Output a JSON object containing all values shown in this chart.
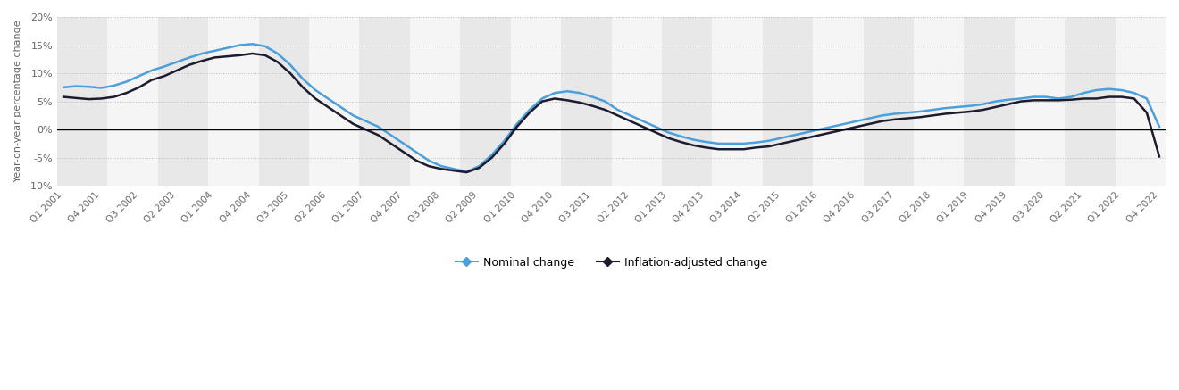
{
  "all_quarters": [
    "Q1 2001",
    "Q2 2001",
    "Q3 2001",
    "Q4 2001",
    "Q1 2002",
    "Q2 2002",
    "Q3 2002",
    "Q4 2002",
    "Q1 2003",
    "Q2 2003",
    "Q3 2003",
    "Q4 2003",
    "Q1 2004",
    "Q2 2004",
    "Q3 2004",
    "Q4 2004",
    "Q1 2005",
    "Q2 2005",
    "Q3 2005",
    "Q4 2005",
    "Q1 2006",
    "Q2 2006",
    "Q3 2006",
    "Q4 2006",
    "Q1 2007",
    "Q2 2007",
    "Q3 2007",
    "Q4 2007",
    "Q1 2008",
    "Q2 2008",
    "Q3 2008",
    "Q4 2008",
    "Q1 2009",
    "Q2 2009",
    "Q3 2009",
    "Q4 2009",
    "Q1 2010",
    "Q2 2010",
    "Q3 2010",
    "Q4 2010",
    "Q1 2011",
    "Q2 2011",
    "Q3 2011",
    "Q4 2011",
    "Q1 2012",
    "Q2 2012",
    "Q3 2012",
    "Q4 2012",
    "Q1 2013",
    "Q2 2013",
    "Q3 2013",
    "Q4 2013",
    "Q1 2014",
    "Q2 2014",
    "Q3 2014",
    "Q4 2014",
    "Q1 2015",
    "Q2 2015",
    "Q3 2015",
    "Q4 2015",
    "Q1 2016",
    "Q2 2016",
    "Q3 2016",
    "Q4 2016",
    "Q1 2017",
    "Q2 2017",
    "Q3 2017",
    "Q4 2017",
    "Q1 2018",
    "Q2 2018",
    "Q3 2018",
    "Q4 2018",
    "Q1 2019",
    "Q2 2019",
    "Q3 2019",
    "Q4 2019",
    "Q1 2020",
    "Q2 2020",
    "Q3 2020",
    "Q4 2020",
    "Q1 2021",
    "Q2 2021",
    "Q3 2021",
    "Q4 2021",
    "Q1 2022",
    "Q2 2022",
    "Q3 2022",
    "Q4 2022"
  ],
  "nominal": [
    7.5,
    7.7,
    7.6,
    7.4,
    7.8,
    8.5,
    9.5,
    10.5,
    11.2,
    12.0,
    12.8,
    13.5,
    14.0,
    14.5,
    15.0,
    15.2,
    14.8,
    13.5,
    11.5,
    9.0,
    7.0,
    5.5,
    4.0,
    2.5,
    1.5,
    0.5,
    -1.0,
    -2.5,
    -4.0,
    -5.5,
    -6.5,
    -7.0,
    -7.5,
    -6.5,
    -4.5,
    -2.0,
    1.0,
    3.5,
    5.5,
    6.5,
    6.8,
    6.5,
    5.8,
    5.0,
    3.5,
    2.5,
    1.5,
    0.5,
    -0.5,
    -1.2,
    -1.8,
    -2.2,
    -2.5,
    -2.5,
    -2.5,
    -2.3,
    -2.0,
    -1.5,
    -1.0,
    -0.5,
    0.0,
    0.5,
    1.0,
    1.5,
    2.0,
    2.5,
    2.8,
    3.0,
    3.2,
    3.5,
    3.8,
    4.0,
    4.2,
    4.5,
    5.0,
    5.3,
    5.5,
    5.8,
    5.8,
    5.5,
    5.8,
    6.5,
    7.0,
    7.2,
    7.0,
    6.5,
    5.5,
    0.5
  ],
  "inflation_adjusted": [
    5.8,
    5.6,
    5.4,
    5.5,
    5.8,
    6.5,
    7.5,
    8.8,
    9.5,
    10.5,
    11.5,
    12.2,
    12.8,
    13.0,
    13.2,
    13.5,
    13.2,
    12.0,
    10.0,
    7.5,
    5.5,
    4.0,
    2.5,
    1.0,
    0.0,
    -1.0,
    -2.5,
    -4.0,
    -5.5,
    -6.5,
    -7.0,
    -7.3,
    -7.6,
    -6.8,
    -5.0,
    -2.5,
    0.5,
    3.0,
    5.0,
    5.5,
    5.2,
    4.8,
    4.2,
    3.5,
    2.5,
    1.5,
    0.5,
    -0.5,
    -1.5,
    -2.2,
    -2.8,
    -3.2,
    -3.5,
    -3.5,
    -3.5,
    -3.2,
    -3.0,
    -2.5,
    -2.0,
    -1.5,
    -1.0,
    -0.5,
    0.0,
    0.5,
    1.0,
    1.5,
    1.8,
    2.0,
    2.2,
    2.5,
    2.8,
    3.0,
    3.2,
    3.5,
    4.0,
    4.5,
    5.0,
    5.2,
    5.2,
    5.2,
    5.3,
    5.5,
    5.5,
    5.8,
    5.8,
    5.5,
    3.0,
    -4.8
  ],
  "tick_labels": [
    "Q1 2001",
    "Q4 2001",
    "Q3 2002",
    "Q2 2003",
    "Q1 2004",
    "Q4 2004",
    "Q3 2005",
    "Q2 2006",
    "Q1 2007",
    "Q4 2007",
    "Q3 2008",
    "Q2 2009",
    "Q1 2010",
    "Q4 2010",
    "Q3 2011",
    "Q2 2012",
    "Q1 2013",
    "Q4 2013",
    "Q3 2014",
    "Q2 2015",
    "Q1 2016",
    "Q4 2016",
    "Q3 2017",
    "Q2 2018",
    "Q1 2019",
    "Q4 2019",
    "Q3 2020",
    "Q2 2021",
    "Q1 2022",
    "Q4 2022"
  ],
  "nominal_color": "#4d9fda",
  "inflation_color": "#1c1c2e",
  "ylabel": "Year-on-year percentage change",
  "ylim": [
    -10,
    20
  ],
  "yticks": [
    -10,
    -5,
    0,
    5,
    10,
    15,
    20
  ],
  "plot_background": "#ffffff",
  "panel_background": "#efefef",
  "grid_color": "#bbbbbb",
  "legend_nominal": "Nominal change",
  "legend_inflation": "Inflation-adjusted change"
}
